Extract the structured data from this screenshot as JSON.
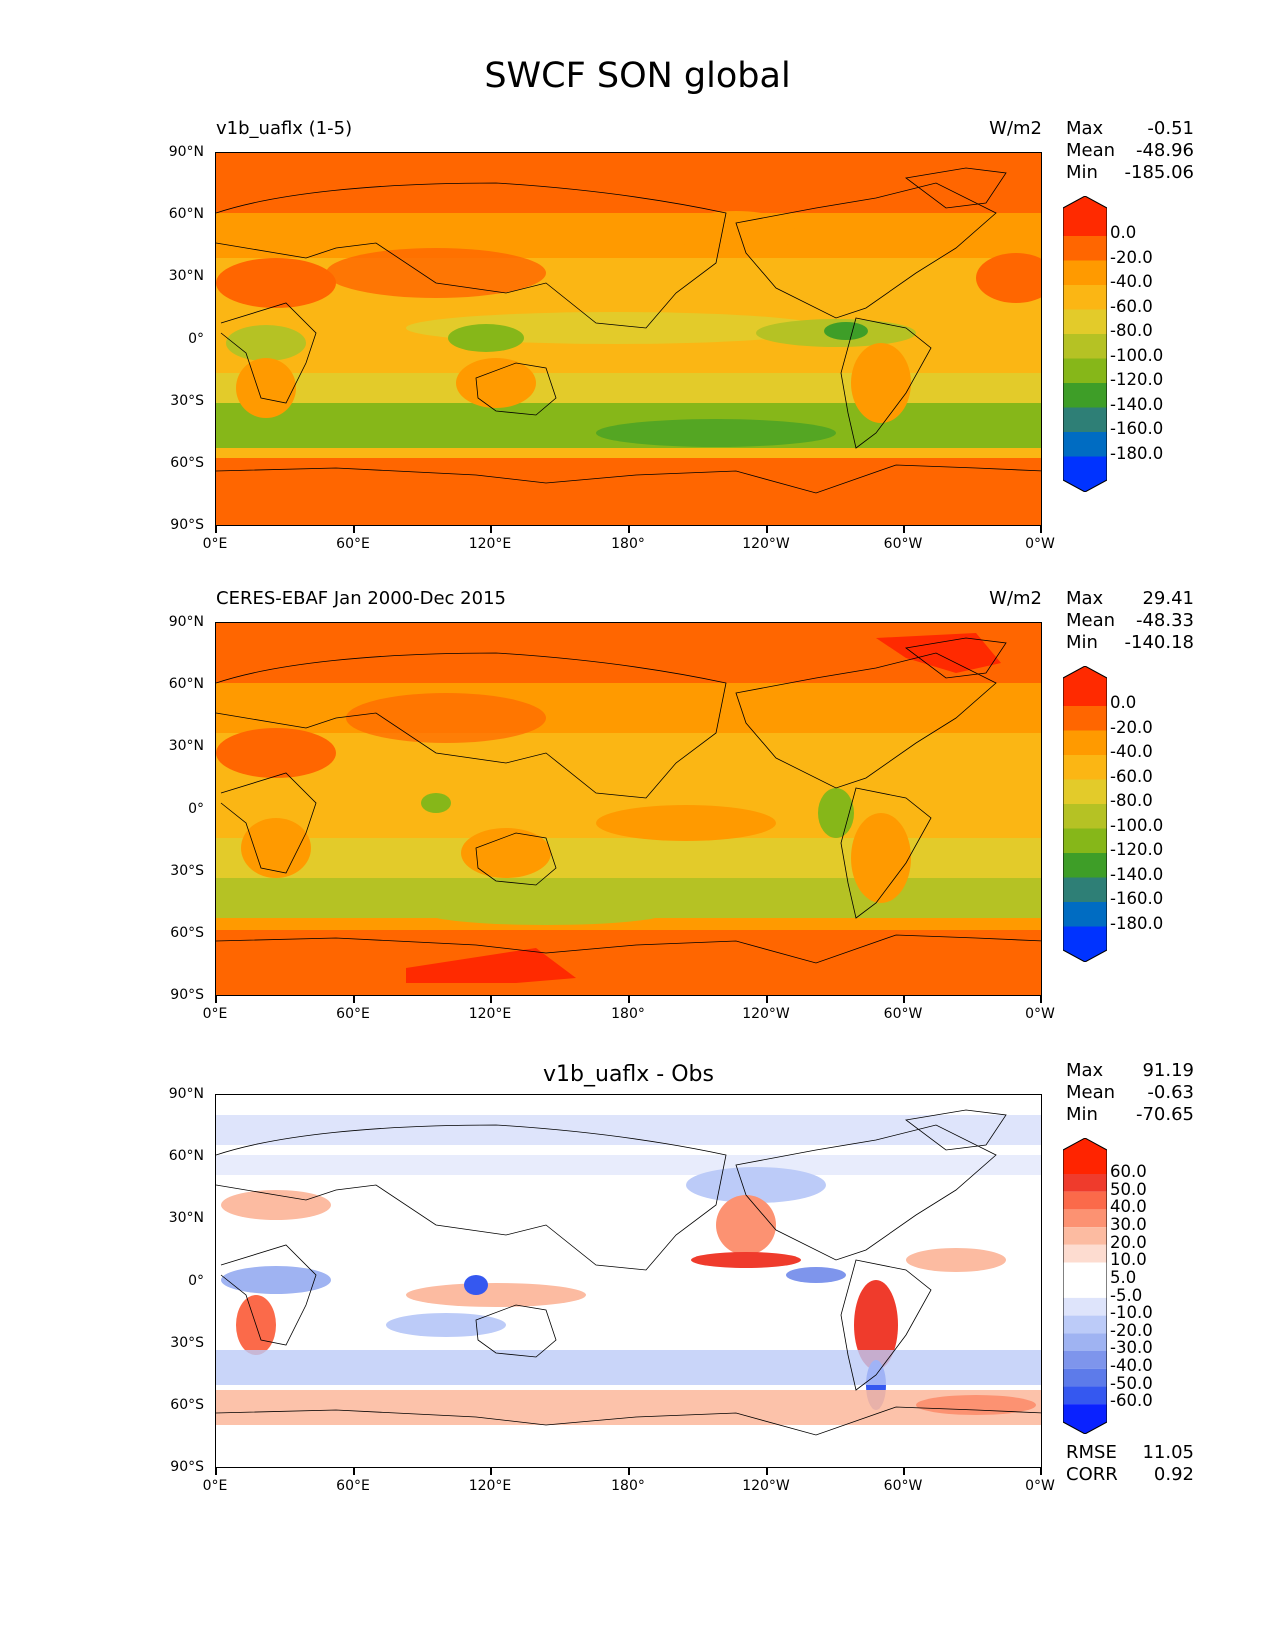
{
  "figure": {
    "title": "SWCF SON global"
  },
  "axes": {
    "yticks": [
      "90°N",
      "60°N",
      "30°N",
      "0°",
      "30°S",
      "60°S",
      "90°S"
    ],
    "xticks": [
      "0°E",
      "60°E",
      "120°E",
      "180°",
      "120°W",
      "60°W",
      "0°W"
    ]
  },
  "panels": [
    {
      "title_left": "v1b_uaflx (1-5)",
      "units": "W/m2",
      "stats": {
        "max_label": "Max",
        "max": "-0.51",
        "mean_label": "Mean",
        "mean": "-48.96",
        "min_label": "Min",
        "min": "-185.06"
      },
      "colorbar": {
        "labels": [
          "0.0",
          "-20.0",
          "-40.0",
          "-60.0",
          "-80.0",
          "-100.0",
          "-120.0",
          "-140.0",
          "-160.0",
          "-180.0"
        ]
      }
    },
    {
      "title_left": "CERES-EBAF Jan 2000-Dec 2015",
      "units": "W/m2",
      "stats": {
        "max_label": "Max",
        "max": "29.41",
        "mean_label": "Mean",
        "mean": "-48.33",
        "min_label": "Min",
        "min": "-140.18"
      },
      "colorbar": {
        "labels": [
          "0.0",
          "-20.0",
          "-40.0",
          "-60.0",
          "-80.0",
          "-100.0",
          "-120.0",
          "-140.0",
          "-160.0",
          "-180.0"
        ]
      }
    },
    {
      "title_center": "v1b_uaflx - Obs",
      "stats": {
        "max_label": "Max",
        "max": "91.19",
        "mean_label": "Mean",
        "mean": "-0.63",
        "min_label": "Min",
        "min": "-70.65"
      },
      "colorbar": {
        "labels": [
          "60.0",
          "50.0",
          "40.0",
          "30.0",
          "20.0",
          "10.0",
          "5.0",
          "-5.0",
          "-10.0",
          "-20.0",
          "-30.0",
          "-40.0",
          "-50.0",
          "-60.0"
        ]
      },
      "metrics": {
        "rmse_label": "RMSE",
        "rmse": "11.05",
        "corr_label": "CORR",
        "corr": "0.92"
      }
    }
  ],
  "colors": {
    "seq": [
      "#ff2a00",
      "#ff6600",
      "#ff9a00",
      "#fbb614",
      "#e3cb2a",
      "#b5c224",
      "#86b719",
      "#3e9e28",
      "#2e7f76",
      "#006cc2",
      "#0033ff"
    ],
    "div": [
      "#ff2400",
      "#ef3b2c",
      "#fb6a4a",
      "#fc9272",
      "#fcbba1",
      "#fddcd0",
      "#ffffff",
      "#ffffff",
      "#dee4fb",
      "#bccbf8",
      "#9fb3f2",
      "#7e95ec",
      "#5d7bea",
      "#3558f0",
      "#0a22ff"
    ]
  },
  "chart_data": [
    {
      "type": "heatmap",
      "title": "v1b_uaflx (1-5)",
      "units": "W/m2",
      "xlim": [
        0,
        360
      ],
      "ylim": [
        -90,
        90
      ],
      "zones": [
        {
          "lat": [
            60,
            90
          ],
          "value": -20
        },
        {
          "lat": [
            40,
            60
          ],
          "value": -40
        },
        {
          "lat": [
            20,
            40
          ],
          "value": -50
        },
        {
          "lat": [
            -10,
            20
          ],
          "value": -60
        },
        {
          "lat": [
            -35,
            -10
          ],
          "value": -70
        },
        {
          "lat": [
            -55,
            -35
          ],
          "value": -100
        },
        {
          "lat": [
            -65,
            -55
          ],
          "value": -60
        },
        {
          "lat": [
            -90,
            -65
          ],
          "value": -20
        }
      ],
      "stats": {
        "max": -0.51,
        "mean": -48.96,
        "min": -185.06
      }
    },
    {
      "type": "heatmap",
      "title": "CERES-EBAF Jan 2000-Dec 2015",
      "units": "W/m2",
      "xlim": [
        0,
        360
      ],
      "ylim": [
        -90,
        90
      ],
      "zones": [
        {
          "lat": [
            60,
            90
          ],
          "value": -20
        },
        {
          "lat": [
            40,
            60
          ],
          "value": -40
        },
        {
          "lat": [
            20,
            40
          ],
          "value": -40
        },
        {
          "lat": [
            -10,
            20
          ],
          "value": -55
        },
        {
          "lat": [
            -35,
            -10
          ],
          "value": -65
        },
        {
          "lat": [
            -55,
            -35
          ],
          "value": -90
        },
        {
          "lat": [
            -65,
            -55
          ],
          "value": -40
        },
        {
          "lat": [
            -90,
            -65
          ],
          "value": -15
        }
      ],
      "stats": {
        "max": 29.41,
        "mean": -48.33,
        "min": -140.18
      }
    },
    {
      "type": "heatmap",
      "title": "v1b_uaflx - Obs",
      "xlim": [
        0,
        360
      ],
      "ylim": [
        -90,
        90
      ],
      "zones": [
        {
          "lat": [
            60,
            90
          ],
          "value": -5
        },
        {
          "lat": [
            40,
            60
          ],
          "value": -10
        },
        {
          "lat": [
            10,
            40
          ],
          "value": 5
        },
        {
          "lat": [
            -15,
            10
          ],
          "value": -10
        },
        {
          "lat": [
            -40,
            -15
          ],
          "value": -10
        },
        {
          "lat": [
            -55,
            -40
          ],
          "value": -20
        },
        {
          "lat": [
            -70,
            -55
          ],
          "value": 10
        },
        {
          "lat": [
            -90,
            -70
          ],
          "value": 0
        }
      ],
      "stats": {
        "max": 91.19,
        "mean": -0.63,
        "min": -70.65,
        "rmse": 11.05,
        "corr": 0.92
      }
    }
  ]
}
